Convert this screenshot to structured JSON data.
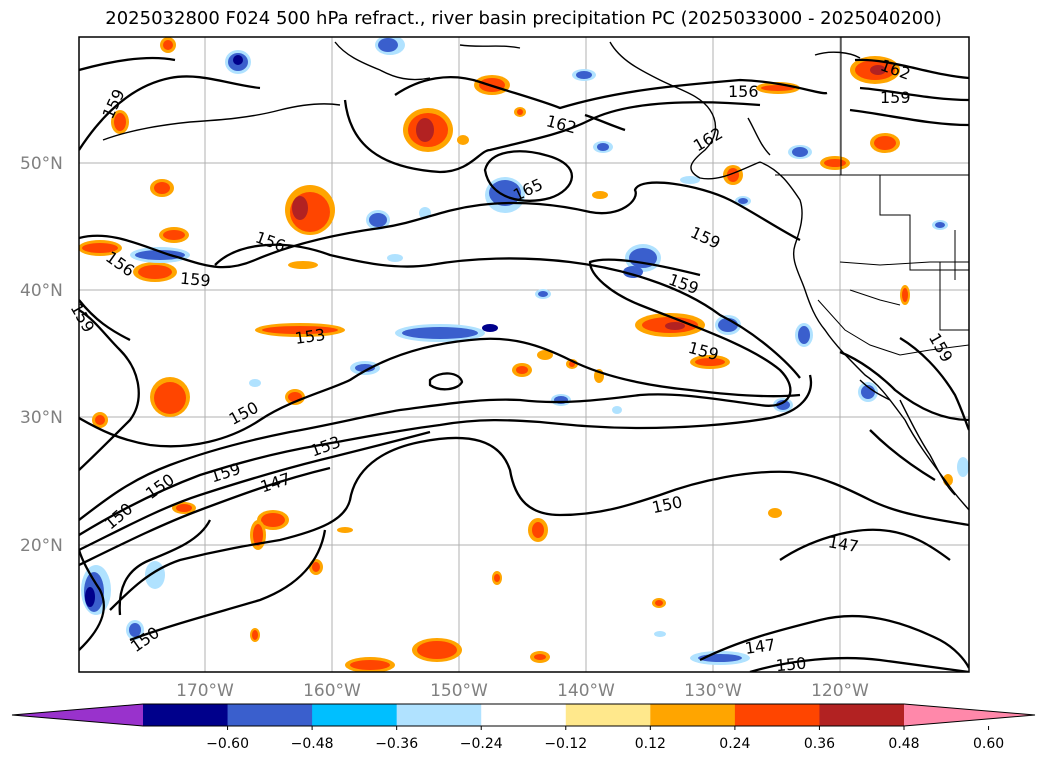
{
  "title": "2025032800 F024 500 hPa refract., river basin precipitation PC (2025033000 - 2025040200)",
  "lat_labels": [
    "50°N",
    "40°N",
    "30°N",
    "20°N"
  ],
  "lon_labels": [
    "170°W",
    "160°W",
    "150°W",
    "140°W",
    "130°W",
    "120°W"
  ],
  "contour_labels": [
    "159",
    "162",
    "159",
    "156",
    "159",
    "159",
    "162",
    "165",
    "162",
    "159",
    "159",
    "156",
    "156",
    "153",
    "159",
    "150",
    "153",
    "150",
    "159",
    "147",
    "150",
    "150",
    "147",
    "150",
    "147",
    "159"
  ],
  "colorbar": {
    "ticks": [
      "−0.60",
      "−0.48",
      "−0.36",
      "−0.24",
      "−0.12",
      "0.12",
      "0.24",
      "0.36",
      "0.48",
      "0.60"
    ],
    "colors": [
      "#9932cc",
      "#00008b",
      "#3a5fcd",
      "#00bfff",
      "#b0e2ff",
      "#ffffff",
      "#ffe88c",
      "#ffa500",
      "#ff4500",
      "#b22222",
      "#ff88aa"
    ]
  }
}
